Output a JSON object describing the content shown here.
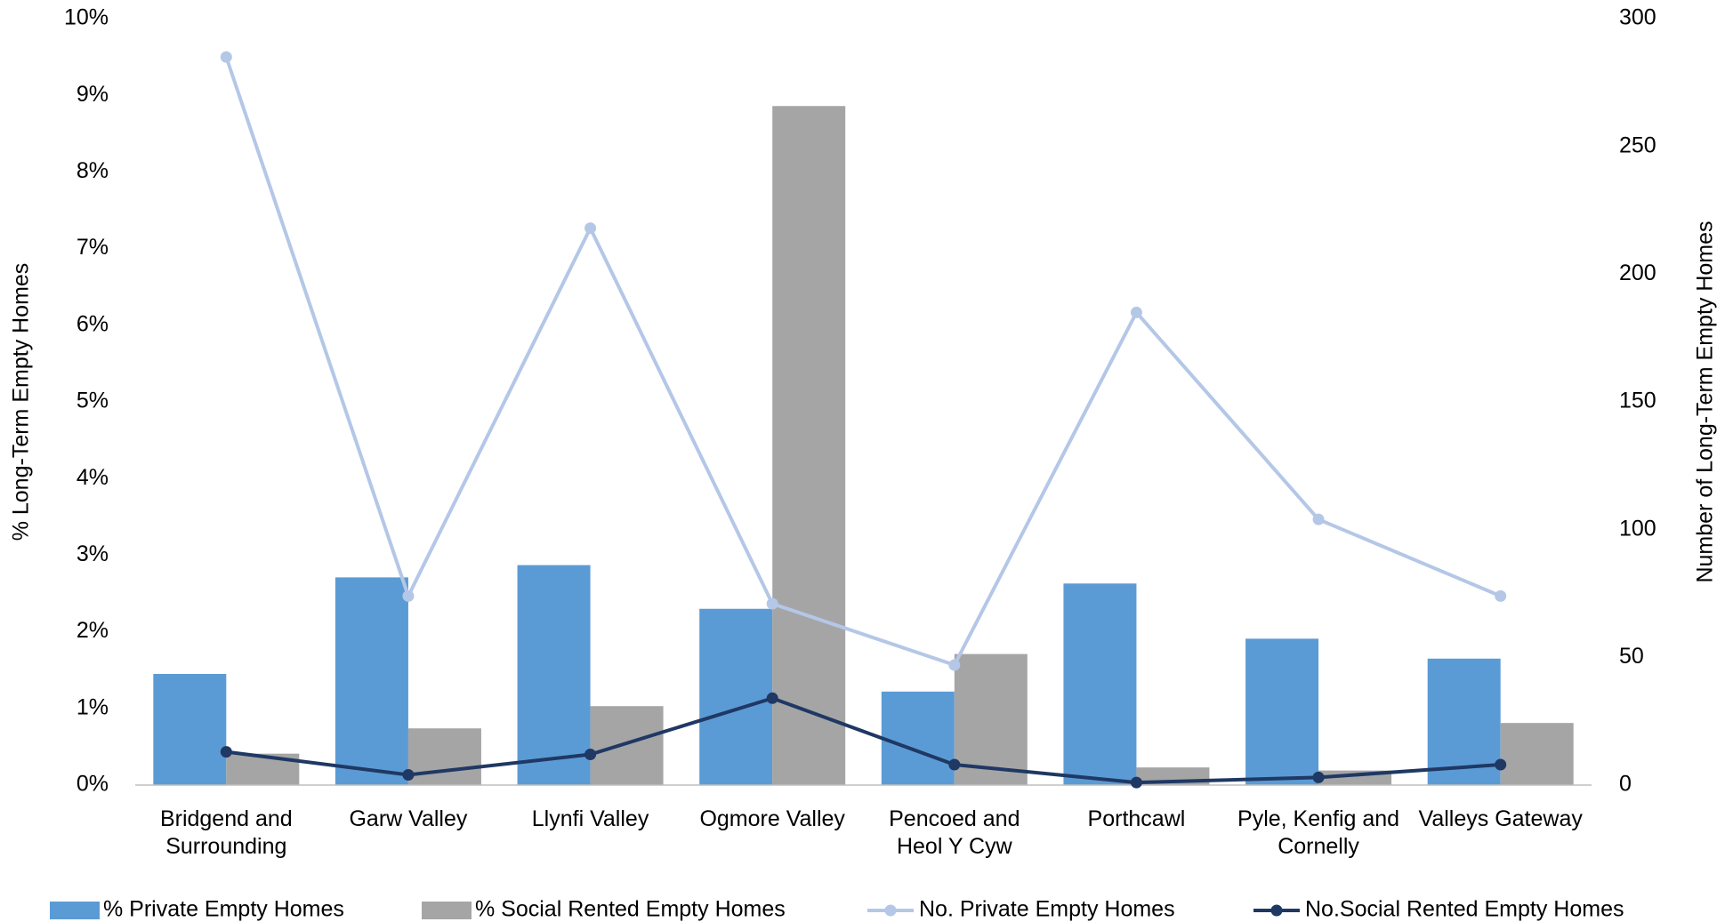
{
  "chart_data": {
    "type": "combo",
    "y_label": "% Long-Term Empty Homes",
    "y2_label": "Number of Long-Term Empty Homes",
    "categories": [
      "Bridgend and Surrounding",
      "Garw Valley",
      "Llynfi Valley",
      "Ogmore Valley",
      "Pencoed and Heol Y Cyw",
      "Porthcawl",
      "Pyle, Kenfig and Cornelly",
      "Valleys Gateway"
    ],
    "series": [
      {
        "name": "% Private Empty Homes",
        "type": "bar",
        "color": "#5b9bd5",
        "values": [
          1.45,
          2.71,
          2.87,
          2.3,
          1.22,
          2.63,
          1.91,
          1.65
        ]
      },
      {
        "name": "% Social Rented Empty Homes",
        "type": "bar",
        "color": "#a5a5a5",
        "values": [
          0.41,
          0.74,
          1.03,
          8.86,
          1.71,
          0.23,
          0.19,
          0.81
        ]
      },
      {
        "name": "No. Private Empty Homes",
        "type": "line",
        "axis": "y2",
        "color": "#b4c7e7",
        "values": [
          285,
          74,
          218,
          71,
          47,
          185,
          104,
          74
        ]
      },
      {
        "name": "No.Social Rented Empty Homes",
        "type": "line",
        "axis": "y2",
        "color": "#1f3864",
        "values": [
          13,
          4,
          12,
          34,
          8,
          1,
          3,
          8
        ]
      }
    ],
    "ylim": [
      0,
      10
    ],
    "yticks": [
      {
        "value": 0,
        "label": "0%"
      },
      {
        "value": 1,
        "label": "1%"
      },
      {
        "value": 2,
        "label": "2%"
      },
      {
        "value": 3,
        "label": "3%"
      },
      {
        "value": 4,
        "label": "4%"
      },
      {
        "value": 5,
        "label": "5%"
      },
      {
        "value": 6,
        "label": "6%"
      },
      {
        "value": 7,
        "label": "7%"
      },
      {
        "value": 8,
        "label": "8%"
      },
      {
        "value": 9,
        "label": "9%"
      },
      {
        "value": 10,
        "label": "10%"
      }
    ],
    "y2lim": [
      0,
      300
    ],
    "y2ticks": [
      0,
      50,
      100,
      150,
      200,
      250,
      300
    ],
    "legend": "bottom"
  }
}
